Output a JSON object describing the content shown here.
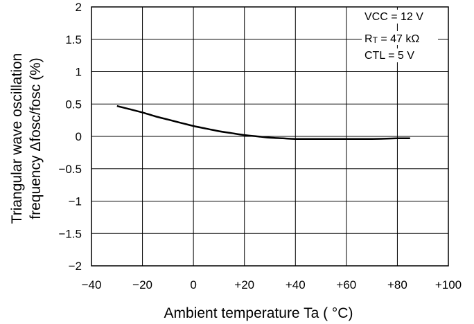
{
  "chart_data": {
    "type": "line",
    "title": "",
    "xlabel": "Ambient temperature Ta ( °C)",
    "ylabel_line1": "Triangular wave oscillation",
    "ylabel_line2": "frequency Δfosc/fosc (%)",
    "xlim": [
      -40,
      100
    ],
    "ylim": [
      -2,
      2
    ],
    "x_ticks": [
      -40,
      -20,
      0,
      20,
      40,
      60,
      80,
      100
    ],
    "x_tick_labels": [
      "−40",
      "−20",
      "0",
      "+20",
      "+40",
      "+60",
      "+80",
      "+100"
    ],
    "y_ticks": [
      -2,
      -1.5,
      -1,
      -0.5,
      0,
      0.5,
      1,
      1.5,
      2
    ],
    "y_tick_labels": [
      "−2",
      "−1.5",
      "−1",
      "−0.5",
      "0",
      "0.5",
      "1",
      "1.5",
      "2"
    ],
    "grid": true,
    "conditions_position": "top-right",
    "conditions": [
      "VCC = 12 V",
      "RT = 47 kΩ",
      "CTL = 5 V"
    ],
    "series": [
      {
        "x": [
          -30,
          -25,
          -20,
          -15,
          -10,
          -5,
          0,
          5,
          10,
          15,
          20,
          25,
          30,
          35,
          40,
          50,
          60,
          70,
          80,
          85
        ],
        "y": [
          0.47,
          0.42,
          0.37,
          0.31,
          0.26,
          0.21,
          0.16,
          0.12,
          0.08,
          0.05,
          0.02,
          0.0,
          -0.02,
          -0.03,
          -0.04,
          -0.04,
          -0.04,
          -0.04,
          -0.03,
          -0.03
        ]
      }
    ]
  }
}
